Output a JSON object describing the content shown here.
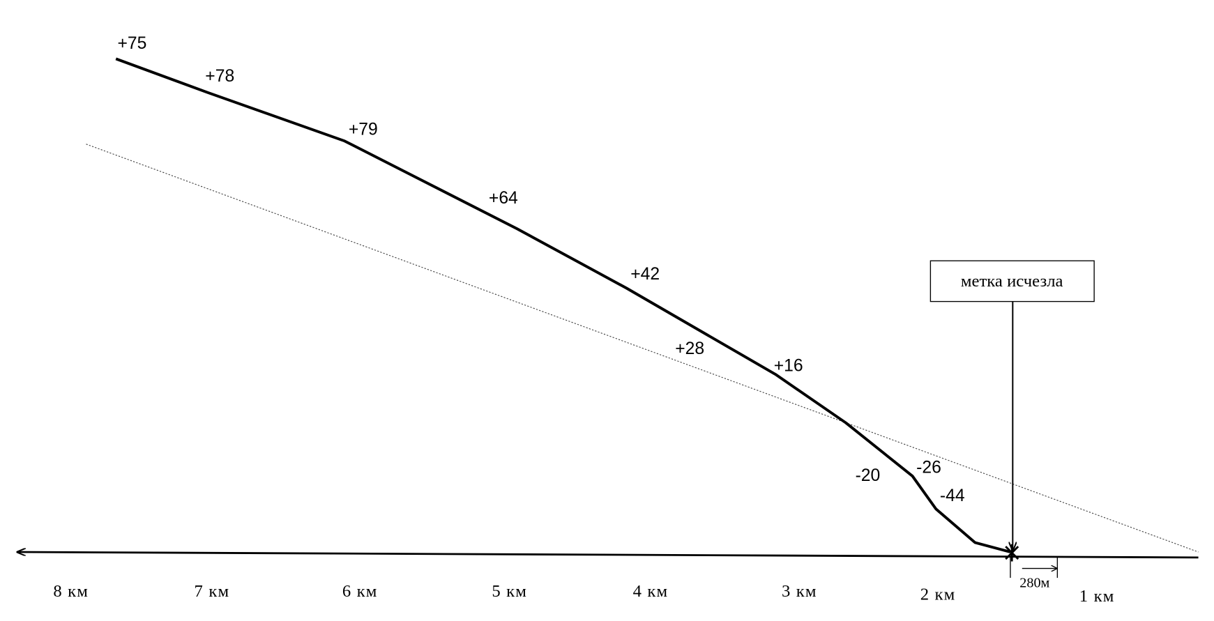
{
  "deviation_labels": [
    "+75",
    "+78",
    "+79",
    "+64",
    "+42",
    "+28",
    "+16",
    "-20",
    "-26",
    "-44"
  ],
  "distance_labels": [
    "8 км",
    "7 км",
    "6 км",
    "5 км",
    "4 км",
    "3 км",
    "2 км",
    "1 км"
  ],
  "callout": "метка исчезла",
  "offset_label": "280м"
}
